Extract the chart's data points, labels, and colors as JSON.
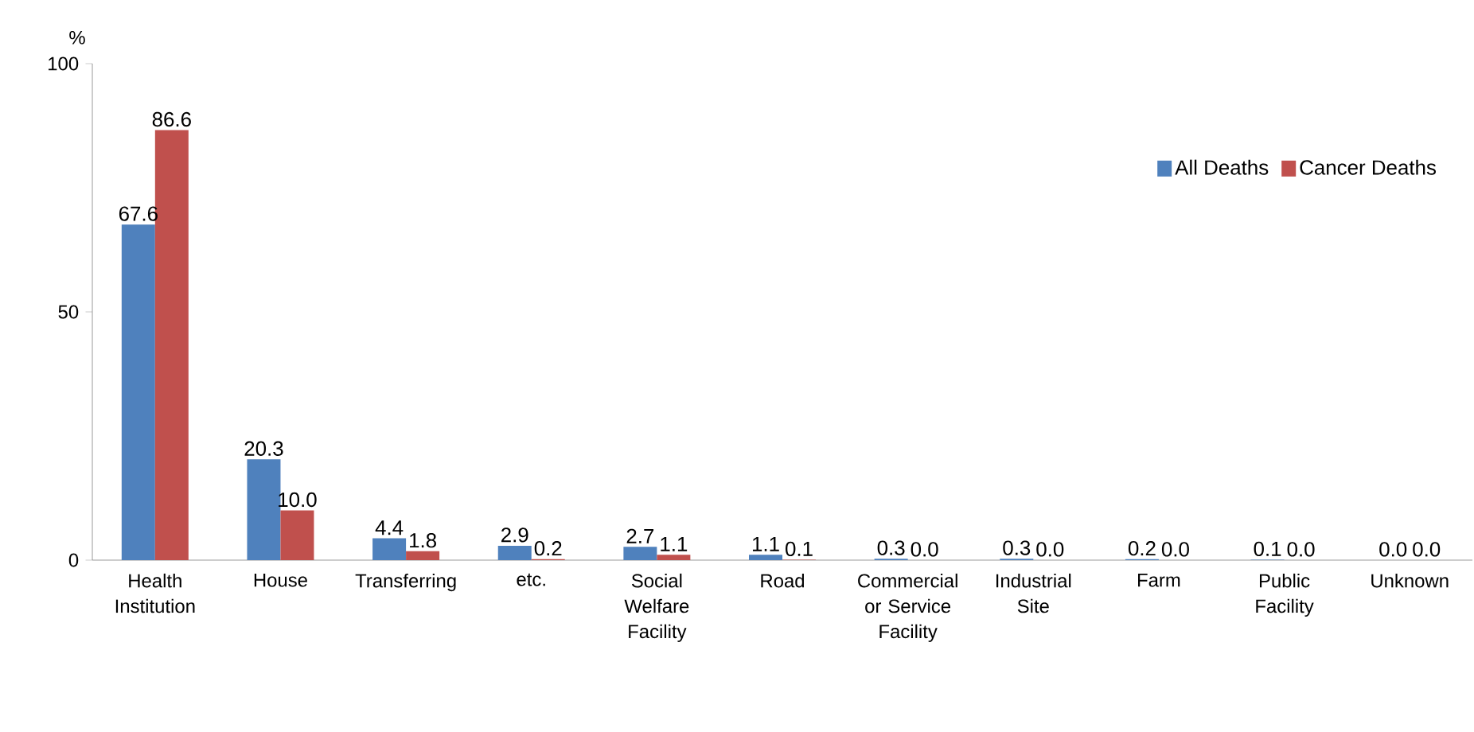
{
  "chart_data": {
    "type": "bar",
    "ylabel": "%",
    "categories": [
      "Health Institution",
      "House",
      "Transferring",
      "etc.",
      "Social Welfare Facility",
      "Road",
      "Commercial or Service Facility",
      "Industrial Site",
      "Farm",
      "Public Facility",
      "Unknown"
    ],
    "series": [
      {
        "name": "All Deaths",
        "color": "#4f81bd",
        "values": [
          67.6,
          20.3,
          4.4,
          2.9,
          2.7,
          1.1,
          0.3,
          0.3,
          0.2,
          0.1,
          0.0
        ],
        "value_labels": [
          "67.6",
          "20.3",
          "4.4",
          "2.9",
          "2.7",
          "1.1",
          "0.3",
          "0.3",
          "0.2",
          "0.1",
          "0.0"
        ]
      },
      {
        "name": "Cancer Deaths",
        "color": "#c0504d",
        "values": [
          86.6,
          10.0,
          1.8,
          0.2,
          1.1,
          0.1,
          0.0,
          0.0,
          0.0,
          0.0,
          0.0
        ],
        "value_labels": [
          "86.6",
          "10.0",
          "1.8",
          "0.2",
          "1.1",
          "0.1",
          "0.0",
          "0.0",
          "0.0",
          "0.0",
          "0.0"
        ]
      }
    ],
    "ylim": [
      0,
      100
    ],
    "yticks": [
      0,
      50,
      100
    ],
    "legend": "top right",
    "grid": false
  }
}
